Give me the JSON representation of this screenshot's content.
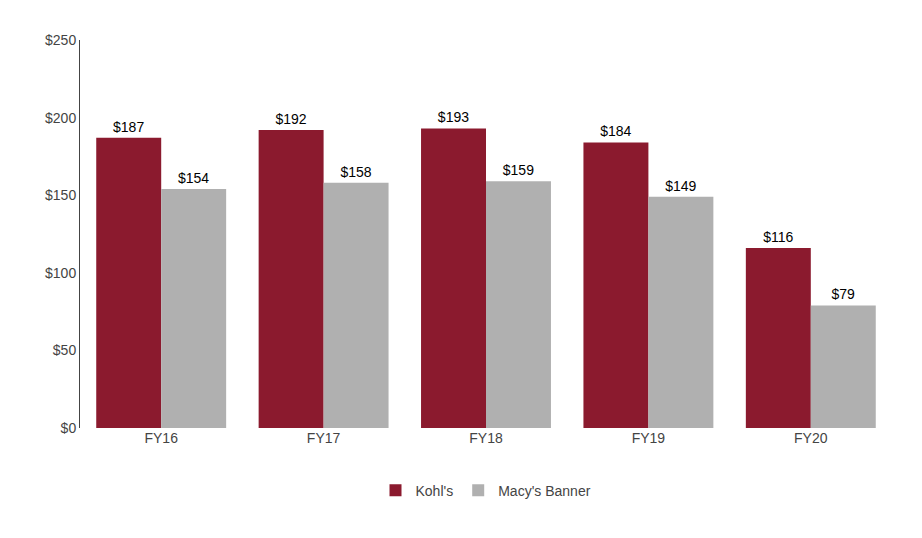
{
  "chart_data": {
    "type": "bar",
    "categories": [
      "FY16",
      "FY17",
      "FY18",
      "FY19",
      "FY20"
    ],
    "series": [
      {
        "name": "Kohl's",
        "color": "#8B1A2E",
        "values": [
          187,
          192,
          193,
          184,
          116
        ],
        "value_labels": [
          "$187",
          "$192",
          "$193",
          "$184",
          "$116"
        ]
      },
      {
        "name": "Macy's Banner",
        "color": "#B0B0B0",
        "values": [
          154,
          158,
          159,
          149,
          79
        ],
        "value_labels": [
          "$154",
          "$158",
          "$159",
          "$149",
          "$79"
        ]
      }
    ],
    "ylim": [
      0,
      250
    ],
    "yticks": [
      {
        "value": 0,
        "label": "$0"
      },
      {
        "value": 50,
        "label": "$50"
      },
      {
        "value": 100,
        "label": "$100"
      },
      {
        "value": 150,
        "label": "$150"
      },
      {
        "value": 200,
        "label": "$200"
      },
      {
        "value": 250,
        "label": "$250"
      }
    ],
    "grid": false,
    "legend": "bottom",
    "data_labels": true
  }
}
